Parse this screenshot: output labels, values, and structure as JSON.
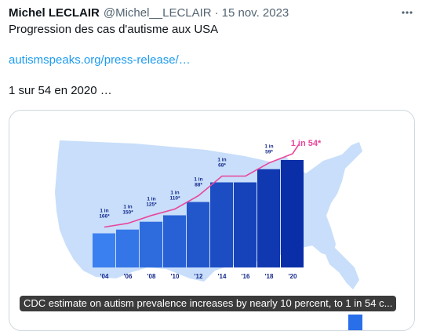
{
  "tweet": {
    "author_name": "Michel LECLAIR",
    "handle": "@Michel__LECLAIR",
    "separator": "·",
    "date": "15 nov. 2023",
    "text_line1": "Progression des cas d'autisme aux USA",
    "link_text": "autismspeaks.org/press-release/…",
    "text_line3": "1 sur 54 en 2020 …"
  },
  "card": {
    "caption": "CDC estimate on autism prevalence increases by nearly 10 percent, to 1 in 54 c..."
  },
  "icons": {
    "more": "more-horizontal-icon"
  },
  "colors": {
    "link": "#1d9bf0",
    "map": "#c8defa",
    "bar_light": "#2a6fea",
    "bar_dark": "#0a2ea8",
    "trend": "#e8479c",
    "label": "#13288a"
  },
  "chart_data": {
    "type": "bar",
    "categories": [
      "'04",
      "'06",
      "'08",
      "'10",
      "'12",
      "'14",
      "'16",
      "'18",
      "'20"
    ],
    "values": [
      166,
      150,
      125,
      110,
      88,
      68,
      68,
      59,
      54
    ],
    "value_labels": [
      [
        "1 in",
        "166*"
      ],
      [
        "1 in",
        "150*"
      ],
      [
        "1 in",
        "125*"
      ],
      [
        "1 in",
        "110*"
      ],
      [
        "1 in",
        "88*"
      ],
      [
        "1 in",
        "68*"
      ],
      [],
      [
        "1 in",
        "59*"
      ],
      []
    ],
    "highlight_label": "1 in 54*",
    "trend_line": true
  }
}
